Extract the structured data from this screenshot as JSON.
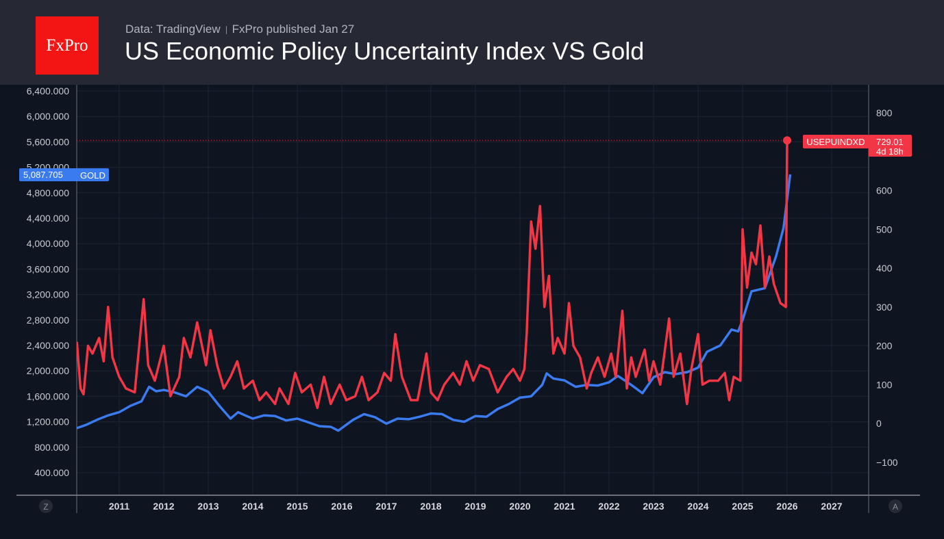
{
  "header": {
    "logo": "FxPro",
    "source": "Data: TradingView",
    "published": "FxPro published Jan 27",
    "title": "US Economic Policy Uncertainty Index VS Gold"
  },
  "controls": {
    "left_button": "Z",
    "right_button": "A"
  },
  "chart_data": {
    "type": "line",
    "title": "US Economic Policy Uncertainty Index VS Gold",
    "x_ticks": [
      "2011",
      "2012",
      "2013",
      "2014",
      "2015",
      "2016",
      "2017",
      "2018",
      "2019",
      "2020",
      "2021",
      "2022",
      "2023",
      "2024",
      "2025",
      "2026",
      "2027"
    ],
    "xlim": [
      2010.05,
      2027.85
    ],
    "left_axis": {
      "ticks": [
        "400.000",
        "800.000",
        "1,200.000",
        "1,600.000",
        "2,000.000",
        "2,400.000",
        "2,800.000",
        "3,200.000",
        "3,600.000",
        "4,000.000",
        "4,400.000",
        "4,800.000",
        "5,200.000",
        "5,600.000",
        "6,000.000",
        "6,400.000"
      ],
      "ylim": [
        0,
        6600
      ]
    },
    "right_axis": {
      "ticks": [
        "−100",
        "0",
        "100",
        "200",
        "300",
        "400",
        "500",
        "600",
        "800"
      ],
      "ylim": [
        -190,
        800
      ]
    },
    "grid": true,
    "series": [
      {
        "name": "GOLD",
        "axis": "left",
        "color": "#3b7bf0",
        "last_value_label": "5,087.705",
        "x": [
          2010.05,
          2010.25,
          2010.5,
          2010.75,
          2011.0,
          2011.25,
          2011.5,
          2011.67,
          2011.83,
          2012.0,
          2012.25,
          2012.5,
          2012.75,
          2013.0,
          2013.25,
          2013.5,
          2013.67,
          2013.83,
          2014.0,
          2014.25,
          2014.5,
          2014.75,
          2015.0,
          2015.25,
          2015.5,
          2015.75,
          2015.92,
          2016.25,
          2016.5,
          2016.75,
          2017.0,
          2017.25,
          2017.5,
          2017.75,
          2018.0,
          2018.25,
          2018.5,
          2018.75,
          2019.0,
          2019.25,
          2019.5,
          2019.75,
          2020.0,
          2020.25,
          2020.5,
          2020.6,
          2020.75,
          2021.0,
          2021.25,
          2021.5,
          2021.75,
          2022.0,
          2022.2,
          2022.5,
          2022.75,
          2023.0,
          2023.25,
          2023.5,
          2023.75,
          2024.0,
          2024.2,
          2024.5,
          2024.75,
          2024.9,
          2025.0,
          2025.2,
          2025.5,
          2025.75,
          2025.92,
          2026.07
        ],
        "y": [
          1100,
          1150,
          1230,
          1300,
          1350,
          1450,
          1520,
          1750,
          1680,
          1700,
          1660,
          1600,
          1750,
          1670,
          1450,
          1250,
          1350,
          1300,
          1250,
          1300,
          1290,
          1220,
          1250,
          1190,
          1130,
          1120,
          1060,
          1230,
          1320,
          1270,
          1170,
          1250,
          1240,
          1280,
          1330,
          1320,
          1230,
          1200,
          1290,
          1280,
          1400,
          1480,
          1580,
          1600,
          1780,
          1960,
          1880,
          1850,
          1750,
          1780,
          1770,
          1820,
          1920,
          1780,
          1650,
          1900,
          1980,
          1950,
          1980,
          2050,
          2300,
          2400,
          2650,
          2620,
          2800,
          3250,
          3300,
          3800,
          4250,
          5087.705
        ]
      },
      {
        "name": "USEPUINDXD",
        "axis": "right",
        "color": "#f23645",
        "last_value_label": "729.01",
        "countdown": "4d 18h",
        "x": [
          2010.05,
          2010.13,
          2010.2,
          2010.3,
          2010.4,
          2010.55,
          2010.65,
          2010.75,
          2010.85,
          2011.0,
          2011.15,
          2011.35,
          2011.55,
          2011.65,
          2011.8,
          2012.0,
          2012.15,
          2012.35,
          2012.45,
          2012.6,
          2012.75,
          2012.95,
          2013.05,
          2013.2,
          2013.35,
          2013.5,
          2013.65,
          2013.8,
          2014.0,
          2014.15,
          2014.3,
          2014.5,
          2014.6,
          2014.8,
          2014.95,
          2015.1,
          2015.3,
          2015.45,
          2015.6,
          2015.75,
          2015.95,
          2016.1,
          2016.3,
          2016.45,
          2016.6,
          2016.8,
          2016.95,
          2017.1,
          2017.2,
          2017.35,
          2017.55,
          2017.7,
          2017.9,
          2018.0,
          2018.15,
          2018.3,
          2018.5,
          2018.65,
          2018.8,
          2018.95,
          2019.1,
          2019.3,
          2019.5,
          2019.7,
          2019.85,
          2020.0,
          2020.1,
          2020.15,
          2020.25,
          2020.35,
          2020.45,
          2020.55,
          2020.65,
          2020.75,
          2020.85,
          2021.0,
          2021.1,
          2021.2,
          2021.35,
          2021.5,
          2021.6,
          2021.75,
          2021.9,
          2022.05,
          2022.15,
          2022.3,
          2022.4,
          2022.5,
          2022.6,
          2022.8,
          2022.9,
          2023.0,
          2023.15,
          2023.35,
          2023.45,
          2023.6,
          2023.75,
          2023.85,
          2024.0,
          2024.1,
          2024.25,
          2024.45,
          2024.6,
          2024.7,
          2024.8,
          2024.95,
          2025.0,
          2025.1,
          2025.2,
          2025.3,
          2025.4,
          2025.5,
          2025.6,
          2025.7,
          2025.85,
          2025.97,
          2026.0
        ],
        "y": [
          210,
          90,
          75,
          200,
          180,
          220,
          160,
          300,
          170,
          120,
          90,
          80,
          320,
          150,
          110,
          200,
          70,
          120,
          220,
          170,
          260,
          150,
          240,
          150,
          90,
          120,
          160,
          90,
          110,
          60,
          80,
          50,
          90,
          50,
          130,
          80,
          100,
          40,
          120,
          50,
          100,
          60,
          70,
          120,
          60,
          80,
          130,
          110,
          230,
          120,
          60,
          60,
          180,
          80,
          60,
          100,
          130,
          100,
          160,
          110,
          150,
          140,
          80,
          120,
          140,
          110,
          140,
          230,
          520,
          450,
          560,
          300,
          380,
          180,
          220,
          180,
          310,
          200,
          170,
          90,
          130,
          170,
          120,
          180,
          120,
          290,
          90,
          170,
          120,
          190,
          110,
          160,
          100,
          270,
          120,
          180,
          50,
          140,
          230,
          100,
          110,
          110,
          130,
          60,
          120,
          110,
          500,
          350,
          440,
          410,
          510,
          350,
          430,
          360,
          310,
          300,
          729.01
        ]
      }
    ]
  }
}
